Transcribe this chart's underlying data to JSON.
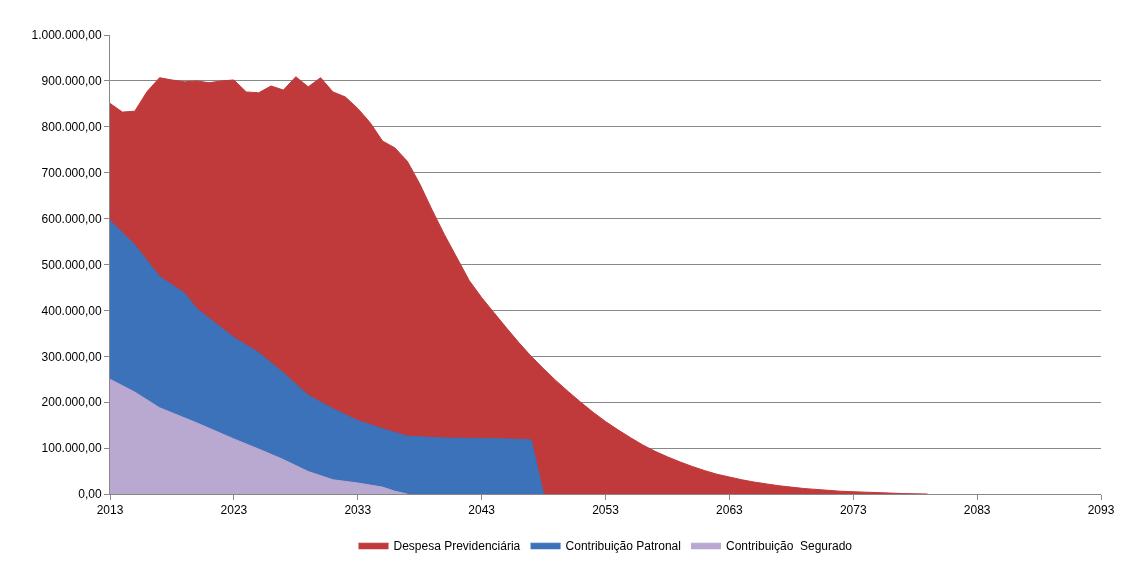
{
  "chart_data": {
    "type": "area",
    "xlim": [
      2013,
      2093
    ],
    "xticks": [
      2013,
      2023,
      2033,
      2043,
      2053,
      2063,
      2073,
      2083,
      2093
    ],
    "ylim": [
      0,
      1000000
    ],
    "yticks": [
      {
        "value": 0,
        "label": "0,00"
      },
      {
        "value": 100000,
        "label": "100.000,00"
      },
      {
        "value": 200000,
        "label": "200.000,00"
      },
      {
        "value": 300000,
        "label": "300.000,00"
      },
      {
        "value": 400000,
        "label": "400.000,00"
      },
      {
        "value": 500000,
        "label": "500.000,00"
      },
      {
        "value": 600000,
        "label": "600.000,00"
      },
      {
        "value": 700000,
        "label": "700.000,00"
      },
      {
        "value": 800000,
        "label": "800.000,00"
      },
      {
        "value": 900000,
        "label": "900.000,00"
      },
      {
        "value": 1000000,
        "label": "1.000.000,00"
      }
    ],
    "grid": "y",
    "legend": "bottom",
    "series": [
      {
        "name": "Despesa Previdenciária",
        "color": "#c0393b",
        "x": [
          2013,
          2014,
          2015,
          2016,
          2017,
          2018,
          2019,
          2020,
          2021,
          2022,
          2023,
          2024,
          2025,
          2026,
          2027,
          2028,
          2029,
          2030,
          2031,
          2032,
          2033,
          2034,
          2035,
          2036,
          2037,
          2038,
          2039,
          2040,
          2041,
          2042,
          2043,
          2044,
          2045,
          2046,
          2047,
          2048,
          2049,
          2050,
          2051,
          2052,
          2053,
          2054,
          2055,
          2056,
          2057,
          2058,
          2059,
          2060,
          2061,
          2062,
          2063,
          2064,
          2065,
          2066,
          2067,
          2068,
          2069,
          2070,
          2071,
          2072,
          2073,
          2074,
          2075,
          2076,
          2077,
          2078,
          2079
        ],
        "values": [
          851000,
          832000,
          834000,
          877000,
          907000,
          902000,
          898000,
          900000,
          896000,
          900000,
          902000,
          876000,
          874000,
          889000,
          880000,
          909000,
          887000,
          907000,
          876000,
          865000,
          840000,
          809000,
          769000,
          754000,
          725000,
          676000,
          619000,
          565000,
          515000,
          465000,
          428000,
          395000,
          362000,
          330000,
          300000,
          273000,
          247000,
          223000,
          200000,
          178000,
          158000,
          140000,
          123000,
          107000,
          93000,
          81000,
          70000,
          60000,
          51000,
          43000,
          37000,
          31000,
          26000,
          22000,
          18000,
          15000,
          12000,
          10000,
          8000,
          6000,
          5000,
          4000,
          3000,
          2000,
          1000,
          500,
          0
        ]
      },
      {
        "name": "Contribuição Patronal",
        "color": "#3b72b9",
        "x": [
          2013,
          2015,
          2017,
          2019,
          2020,
          2023,
          2025,
          2027,
          2029,
          2031,
          2033,
          2035,
          2037,
          2040,
          2045,
          2047,
          2048
        ],
        "values": [
          596000,
          543000,
          474000,
          438000,
          404000,
          341000,
          308000,
          264000,
          215000,
          186000,
          160000,
          142000,
          126000,
          122000,
          120000,
          118000,
          0
        ]
      },
      {
        "name": "Contribuição  Segurado",
        "color": "#b9a8d0",
        "x": [
          2013,
          2015,
          2017,
          2020,
          2023,
          2025,
          2027,
          2029,
          2031,
          2033,
          2035,
          2036,
          2037
        ],
        "values": [
          250000,
          222000,
          188000,
          155000,
          120000,
          98000,
          75000,
          49000,
          31000,
          24000,
          15000,
          6000,
          0
        ]
      }
    ]
  }
}
